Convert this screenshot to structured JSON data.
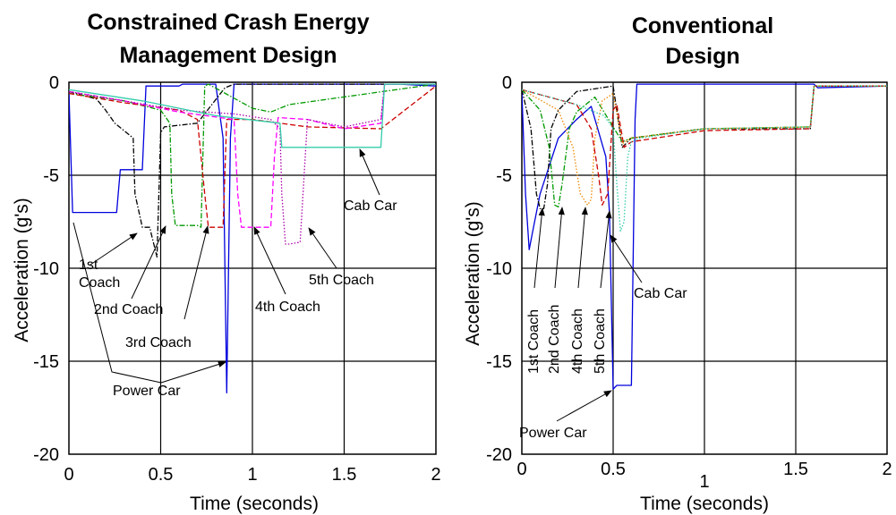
{
  "chart_data": [
    {
      "type": "line",
      "title_lines": [
        "Constrained Crash Energy",
        "Management Design"
      ],
      "xlabel": "Time (seconds)",
      "ylabel": "Acceleration (g's)",
      "xlim": [
        0,
        2
      ],
      "ylim": [
        -20,
        0
      ],
      "xticks": [
        "0",
        "0.5",
        "1",
        "1.5",
        "2"
      ],
      "yticks": [
        "0",
        "-5",
        "-10",
        "-15",
        "-20"
      ],
      "grid": true,
      "series": [
        {
          "name": "Power Car",
          "color": "#0000dd",
          "style": "solid",
          "x": [
            0,
            0.02,
            0.05,
            0.1,
            0.26,
            0.28,
            0.4,
            0.42,
            0.6,
            0.62,
            0.8,
            0.84,
            0.86,
            0.88,
            0.9,
            0.92,
            1.6,
            1.7,
            1.8,
            2.0
          ],
          "y": [
            -0.5,
            -7.0,
            -7.0,
            -7.0,
            -7.0,
            -4.7,
            -4.7,
            -0.2,
            -0.2,
            -0.1,
            -0.1,
            -3.0,
            -16.7,
            -3.0,
            -0.1,
            -0.1,
            -0.1,
            -0.1,
            -0.1,
            -0.2
          ]
        },
        {
          "name": "1st Coach",
          "color": "#000000",
          "style": "dashdot",
          "x": [
            0,
            0.15,
            0.2,
            0.25,
            0.3,
            0.35,
            0.36,
            0.4,
            0.44,
            0.48,
            0.5,
            0.52,
            0.7,
            0.85,
            0.9,
            2.0
          ],
          "y": [
            -0.5,
            -0.9,
            -1.5,
            -2.2,
            -2.6,
            -3.0,
            -6.0,
            -7.8,
            -7.8,
            -9.4,
            -2.7,
            -2.4,
            -2.2,
            -0.3,
            -0.1,
            -0.1
          ]
        },
        {
          "name": "2nd Coach",
          "color": "#009900",
          "style": "dashdot",
          "x": [
            0,
            0.3,
            0.5,
            0.55,
            0.56,
            0.58,
            0.7,
            0.72,
            0.74,
            0.76,
            1.0,
            1.1,
            1.2,
            2.0
          ],
          "y": [
            -0.6,
            -1.0,
            -1.5,
            -2.2,
            -6.0,
            -7.7,
            -7.7,
            -7.8,
            -0.2,
            -0.1,
            -1.4,
            -1.6,
            -1.2,
            -0.1
          ]
        },
        {
          "name": "3rd Coach",
          "color": "#cc0000",
          "style": "dashed",
          "x": [
            0,
            0.3,
            0.6,
            0.7,
            0.74,
            0.76,
            0.8,
            0.84,
            0.86,
            1.0,
            1.3,
            1.7,
            2.0
          ],
          "y": [
            -0.6,
            -1.1,
            -1.5,
            -2.0,
            -6.0,
            -7.8,
            -7.8,
            -7.8,
            -2.0,
            -2.0,
            -2.4,
            -2.5,
            -0.2
          ]
        },
        {
          "name": "4th Coach",
          "color": "#ff00ff",
          "style": "dashed",
          "x": [
            0,
            0.3,
            0.6,
            0.9,
            0.92,
            0.94,
            1.0,
            1.1,
            1.12,
            1.14,
            1.3,
            1.5,
            1.7,
            1.72,
            2.0
          ],
          "y": [
            -0.5,
            -1.0,
            -1.6,
            -2.0,
            -6.0,
            -7.8,
            -7.8,
            -7.8,
            -4.0,
            -1.9,
            -2.0,
            -2.5,
            -2.2,
            -0.1,
            -0.1
          ]
        },
        {
          "name": "5th Coach",
          "color": "#aa00aa",
          "style": "dotted",
          "x": [
            0,
            0.3,
            0.6,
            0.9,
            1.1,
            1.15,
            1.16,
            1.18,
            1.2,
            1.26,
            1.3,
            1.5,
            1.7,
            1.72,
            2.0
          ],
          "y": [
            -0.5,
            -1.0,
            -1.5,
            -1.7,
            -2.0,
            -2.5,
            -6.0,
            -8.7,
            -8.7,
            -8.6,
            -2.0,
            -2.4,
            -2.0,
            -0.1,
            -0.1
          ]
        },
        {
          "name": "Cab Car",
          "color": "#33ccaa",
          "style": "solid",
          "x": [
            0,
            0.4,
            0.8,
            1.15,
            1.16,
            1.6,
            1.7,
            1.72,
            2.0
          ],
          "y": [
            -0.4,
            -1.0,
            -1.8,
            -2.2,
            -3.5,
            -3.5,
            -3.5,
            -0.1,
            -0.1
          ]
        }
      ],
      "annotations": [
        "1st Coach",
        "2nd Coach",
        "3rd Coach",
        "4th Coach",
        "5th Coach",
        "Power Car",
        "Cab Car"
      ]
    },
    {
      "type": "line",
      "title_lines": [
        "Conventional",
        "Design"
      ],
      "xlabel": "Time (seconds)",
      "ylabel": "Acceleration (g's)",
      "xlim": [
        0,
        2
      ],
      "ylim": [
        -20,
        0
      ],
      "xticks": [
        "0",
        "0.5",
        "1",
        "1.5",
        "2"
      ],
      "yticks": [
        "0",
        "-5",
        "-10",
        "-15",
        "-20"
      ],
      "grid": true,
      "series": [
        {
          "name": "Power Car",
          "color": "#0000dd",
          "style": "solid",
          "x": [
            0,
            0.02,
            0.04,
            0.06,
            0.1,
            0.2,
            0.3,
            0.38,
            0.46,
            0.48,
            0.5,
            0.52,
            0.58,
            0.6,
            0.62,
            0.63,
            0.7,
            1.6,
            1.62,
            2.0
          ],
          "y": [
            -0.5,
            -6.0,
            -9.0,
            -8.0,
            -6.0,
            -3.0,
            -2.0,
            -1.3,
            -4.0,
            -7.0,
            -16.5,
            -16.3,
            -16.3,
            -16.3,
            -2.0,
            -0.1,
            -0.1,
            -0.1,
            -0.3,
            -0.2
          ]
        },
        {
          "name": "1st Coach",
          "color": "#000000",
          "style": "dashdot",
          "x": [
            0,
            0.05,
            0.08,
            0.1,
            0.12,
            0.14,
            0.16,
            0.2,
            0.3,
            0.5,
            0.55,
            0.6,
            1.0,
            1.58,
            1.6,
            2.0
          ],
          "y": [
            -0.4,
            -2.5,
            -6.0,
            -6.8,
            -6.8,
            -5.5,
            -2.5,
            -1.5,
            -0.5,
            -0.2,
            -3.5,
            -3.0,
            -2.5,
            -2.5,
            -0.2,
            -0.2
          ]
        },
        {
          "name": "2nd Coach",
          "color": "#009900",
          "style": "dashdot",
          "x": [
            0,
            0.1,
            0.15,
            0.18,
            0.2,
            0.22,
            0.26,
            0.3,
            0.4,
            0.55,
            0.6,
            1.0,
            1.58,
            1.6,
            2.0
          ],
          "y": [
            -0.4,
            -1.5,
            -3.5,
            -6.6,
            -6.7,
            -5.5,
            -2.5,
            -1.6,
            -0.8,
            -3.2,
            -3.0,
            -2.5,
            -2.4,
            -0.2,
            -0.2
          ]
        },
        {
          "name": "4th Coach",
          "color": "#ee8800",
          "style": "dotted",
          "x": [
            0,
            0.2,
            0.28,
            0.32,
            0.36,
            0.38,
            0.4,
            0.44,
            0.5,
            0.55,
            0.6,
            1.0,
            1.58,
            1.6,
            2.0
          ],
          "y": [
            -0.4,
            -1.5,
            -3.5,
            -6.0,
            -6.6,
            -6.3,
            -3.0,
            -1.0,
            -0.6,
            -3.3,
            -3.0,
            -2.5,
            -2.4,
            -0.2,
            -0.2
          ]
        },
        {
          "name": "5th Coach",
          "color": "#cc0000",
          "style": "dashed",
          "x": [
            0,
            0.3,
            0.38,
            0.42,
            0.44,
            0.47,
            0.5,
            0.52,
            0.56,
            0.6,
            1.0,
            1.58,
            1.6,
            2.0
          ],
          "y": [
            -0.4,
            -1.2,
            -2.5,
            -5.0,
            -6.6,
            -6.0,
            -1.5,
            -1.2,
            -3.5,
            -3.2,
            -2.6,
            -2.5,
            -0.2,
            -0.2
          ]
        },
        {
          "name": "Cab Car",
          "color": "#33ccaa",
          "style": "dotted",
          "x": [
            0,
            0.3,
            0.45,
            0.5,
            0.52,
            0.54,
            0.56,
            0.58,
            0.6,
            0.65,
            1.0,
            1.58,
            1.6,
            2.0
          ],
          "y": [
            -0.4,
            -1.2,
            -1.8,
            -2.5,
            -5.5,
            -8.0,
            -7.5,
            -4.0,
            -3.2,
            -3.0,
            -2.5,
            -2.4,
            -0.2,
            -0.2
          ]
        }
      ],
      "annotations": [
        "1st Coach",
        "2nd Coach",
        "4th Coach",
        "5th Coach",
        "Power Car",
        "Cab Car"
      ]
    }
  ]
}
